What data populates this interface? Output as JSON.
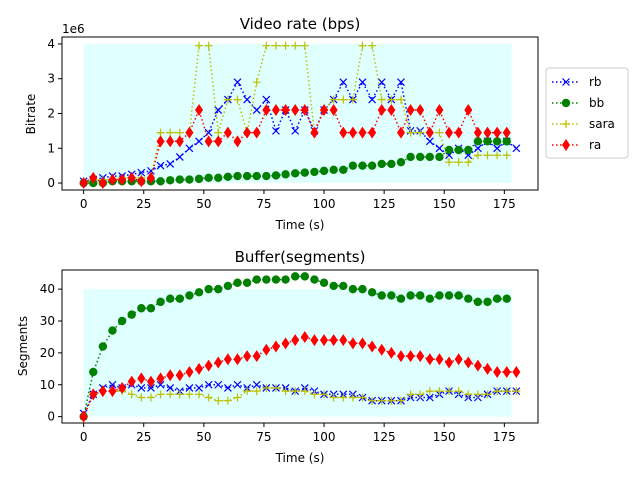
{
  "colors": {
    "rb": "#0000ff",
    "bb": "#008000",
    "sara": "#bfbf00",
    "ra": "#ff0000",
    "background": "#e0ffff"
  },
  "chart_data": [
    {
      "type": "line",
      "title": "Video rate (bps)",
      "xlabel": "Time (s)",
      "ylabel": "Bitrate",
      "offset_label": "1e6",
      "xlim": [
        -9,
        189
      ],
      "ylim": [
        -0.2,
        4.2
      ],
      "x_ticks": [
        0,
        25,
        50,
        75,
        100,
        125,
        150,
        175
      ],
      "y_ticks": [
        0,
        1,
        2,
        3,
        4
      ],
      "grid": false,
      "legend": {
        "placement": "right",
        "entries": [
          "rb",
          "bb",
          "sara",
          "ra"
        ]
      },
      "shaded_region": {
        "x": [
          0,
          178
        ],
        "y": [
          0,
          4
        ]
      },
      "series": [
        {
          "name": "rb",
          "marker": "x",
          "linestyle": "dotted",
          "x": [
            0,
            4,
            8,
            12,
            16,
            20,
            24,
            28,
            32,
            36,
            40,
            44,
            48,
            52,
            56,
            60,
            64,
            68,
            72,
            76,
            80,
            84,
            88,
            92,
            96,
            100,
            104,
            108,
            112,
            116,
            120,
            124,
            128,
            132,
            136,
            140,
            144,
            148,
            152,
            156,
            160,
            164,
            168,
            172,
            176,
            180
          ],
          "y": [
            0.05,
            0.1,
            0.15,
            0.2,
            0.2,
            0.25,
            0.3,
            0.35,
            0.5,
            0.55,
            0.75,
            1.0,
            1.2,
            1.45,
            2.1,
            2.4,
            2.9,
            2.4,
            2.1,
            2.4,
            1.5,
            2.1,
            1.5,
            2.1,
            1.5,
            2.1,
            2.4,
            2.9,
            2.4,
            2.9,
            2.4,
            2.9,
            2.4,
            2.9,
            1.5,
            1.5,
            1.2,
            1.0,
            0.8,
            1.0,
            0.8,
            1.0,
            1.2,
            1.0,
            1.2,
            1.0
          ]
        },
        {
          "name": "bb",
          "marker": "o",
          "linestyle": "dotted",
          "x": [
            0,
            4,
            8,
            12,
            16,
            20,
            24,
            28,
            32,
            36,
            40,
            44,
            48,
            52,
            56,
            60,
            64,
            68,
            72,
            76,
            80,
            84,
            88,
            92,
            96,
            100,
            104,
            108,
            112,
            116,
            120,
            124,
            128,
            132,
            136,
            140,
            144,
            148,
            152,
            156,
            160,
            164,
            168,
            172,
            176
          ],
          "y": [
            0,
            0,
            0,
            0.05,
            0.05,
            0.05,
            0.05,
            0.05,
            0.05,
            0.08,
            0.1,
            0.1,
            0.12,
            0.15,
            0.15,
            0.18,
            0.2,
            0.2,
            0.2,
            0.2,
            0.22,
            0.25,
            0.28,
            0.3,
            0.32,
            0.35,
            0.38,
            0.38,
            0.5,
            0.5,
            0.5,
            0.55,
            0.55,
            0.6,
            0.75,
            0.75,
            0.75,
            0.75,
            0.95,
            0.95,
            0.95,
            1.2,
            1.2,
            1.2,
            1.2
          ]
        },
        {
          "name": "sara",
          "marker": "+",
          "linestyle": "dotted",
          "x": [
            0,
            4,
            8,
            12,
            16,
            20,
            24,
            28,
            32,
            36,
            40,
            44,
            48,
            52,
            56,
            60,
            64,
            68,
            72,
            76,
            80,
            84,
            88,
            92,
            96,
            100,
            104,
            108,
            112,
            116,
            120,
            124,
            128,
            132,
            136,
            140,
            144,
            148,
            152,
            156,
            160,
            164,
            168,
            172,
            176
          ],
          "y": [
            0,
            0.1,
            0.1,
            0.1,
            0.15,
            0.15,
            0.15,
            0.15,
            1.45,
            1.45,
            1.45,
            1.45,
            3.95,
            3.95,
            1.45,
            2.4,
            2.4,
            1.45,
            2.9,
            3.95,
            3.95,
            3.95,
            3.95,
            3.95,
            1.45,
            2.1,
            2.4,
            2.4,
            2.4,
            3.95,
            3.95,
            2.4,
            2.4,
            2.4,
            1.45,
            1.45,
            1.45,
            1.45,
            0.6,
            0.6,
            0.6,
            0.8,
            0.8,
            0.8,
            0.8
          ]
        },
        {
          "name": "ra",
          "marker": "d",
          "linestyle": "dotted",
          "x": [
            0,
            4,
            8,
            12,
            16,
            20,
            24,
            28,
            32,
            36,
            40,
            44,
            48,
            52,
            56,
            60,
            64,
            68,
            72,
            76,
            80,
            84,
            88,
            92,
            96,
            100,
            104,
            108,
            112,
            116,
            120,
            124,
            128,
            132,
            136,
            140,
            144,
            148,
            152,
            156,
            160,
            164,
            168,
            172,
            176
          ],
          "y": [
            0,
            0.15,
            0,
            0.1,
            0.1,
            0.15,
            0.05,
            0.15,
            1.2,
            1.2,
            1.2,
            1.45,
            2.1,
            1.2,
            1.2,
            1.45,
            1.2,
            1.45,
            1.45,
            2.1,
            2.1,
            2.1,
            2.1,
            2.1,
            1.45,
            2.1,
            2.1,
            1.45,
            1.45,
            1.45,
            1.45,
            2.1,
            2.1,
            1.45,
            2.1,
            2.1,
            1.45,
            2.1,
            1.45,
            1.45,
            2.1,
            1.45,
            1.45,
            1.45,
            1.45
          ]
        }
      ]
    },
    {
      "type": "line",
      "title": "Buffer(segments)",
      "xlabel": "Time (s)",
      "ylabel": "Segments",
      "xlim": [
        -9,
        189
      ],
      "ylim": [
        -2,
        46
      ],
      "x_ticks": [
        0,
        25,
        50,
        75,
        100,
        125,
        150,
        175
      ],
      "y_ticks": [
        0,
        10,
        20,
        30,
        40
      ],
      "grid": false,
      "shaded_region": {
        "x": [
          0,
          178
        ],
        "y": [
          0,
          40
        ]
      },
      "series": [
        {
          "name": "rb",
          "marker": "x",
          "linestyle": "dotted",
          "x": [
            0,
            4,
            8,
            12,
            16,
            20,
            24,
            28,
            32,
            36,
            40,
            44,
            48,
            52,
            56,
            60,
            64,
            68,
            72,
            76,
            80,
            84,
            88,
            92,
            96,
            100,
            104,
            108,
            112,
            116,
            120,
            124,
            128,
            132,
            136,
            140,
            144,
            148,
            152,
            156,
            160,
            164,
            168,
            172,
            176,
            180
          ],
          "y": [
            1,
            7,
            9,
            10,
            9,
            10,
            9,
            9,
            10,
            9,
            8,
            9,
            9,
            10,
            10,
            9,
            10,
            9,
            10,
            9,
            9,
            9,
            8,
            9,
            8,
            7,
            7,
            7,
            7,
            6,
            5,
            5,
            5,
            5,
            6,
            6,
            6,
            7,
            8,
            7,
            6,
            6,
            7,
            8,
            8,
            8
          ]
        },
        {
          "name": "bb",
          "marker": "o",
          "linestyle": "dotted",
          "x": [
            0,
            4,
            8,
            12,
            16,
            20,
            24,
            28,
            32,
            36,
            40,
            44,
            48,
            52,
            56,
            60,
            64,
            68,
            72,
            76,
            80,
            84,
            88,
            92,
            96,
            100,
            104,
            108,
            112,
            116,
            120,
            124,
            128,
            132,
            136,
            140,
            144,
            148,
            152,
            156,
            160,
            164,
            168,
            172,
            176
          ],
          "y": [
            0,
            14,
            22,
            27,
            30,
            32,
            34,
            34,
            36,
            37,
            37,
            38,
            39,
            40,
            40,
            41,
            42,
            42,
            43,
            43,
            43,
            43,
            44,
            44,
            43,
            42,
            41,
            41,
            40,
            40,
            39,
            38,
            38,
            37,
            38,
            38,
            37,
            38,
            38,
            38,
            37,
            36,
            36,
            37,
            37
          ]
        },
        {
          "name": "sara",
          "marker": "+",
          "linestyle": "dotted",
          "x": [
            0,
            4,
            8,
            12,
            16,
            20,
            24,
            28,
            32,
            36,
            40,
            44,
            48,
            52,
            56,
            60,
            64,
            68,
            72,
            76,
            80,
            84,
            88,
            92,
            96,
            100,
            104,
            108,
            112,
            116,
            120,
            124,
            128,
            132,
            136,
            140,
            144,
            148,
            152,
            156,
            160,
            164,
            168,
            172,
            176,
            180
          ],
          "y": [
            0,
            7,
            8,
            8,
            8,
            7,
            6,
            6,
            7,
            7,
            7,
            7,
            7,
            6,
            5,
            5,
            6,
            8,
            8,
            9,
            9,
            8,
            8,
            8,
            7,
            7,
            6,
            6,
            6,
            6,
            5,
            5,
            5,
            5,
            7,
            7,
            8,
            8,
            8,
            8,
            7,
            7,
            7,
            8,
            8,
            8
          ]
        },
        {
          "name": "ra",
          "marker": "d",
          "linestyle": "dotted",
          "x": [
            0,
            4,
            8,
            12,
            16,
            20,
            24,
            28,
            32,
            36,
            40,
            44,
            48,
            52,
            56,
            60,
            64,
            68,
            72,
            76,
            80,
            84,
            88,
            92,
            96,
            100,
            104,
            108,
            112,
            116,
            120,
            124,
            128,
            132,
            136,
            140,
            144,
            148,
            152,
            156,
            160,
            164,
            168,
            172,
            176,
            180
          ],
          "y": [
            0,
            7,
            8,
            8,
            9,
            11,
            12,
            11,
            12,
            13,
            13,
            14,
            15,
            16,
            17,
            18,
            18,
            19,
            19,
            21,
            22,
            23,
            24,
            25,
            24,
            24,
            24,
            24,
            23,
            23,
            22,
            21,
            20,
            19,
            19,
            19,
            18,
            18,
            17,
            18,
            17,
            16,
            15,
            14,
            14,
            14
          ]
        }
      ]
    }
  ]
}
